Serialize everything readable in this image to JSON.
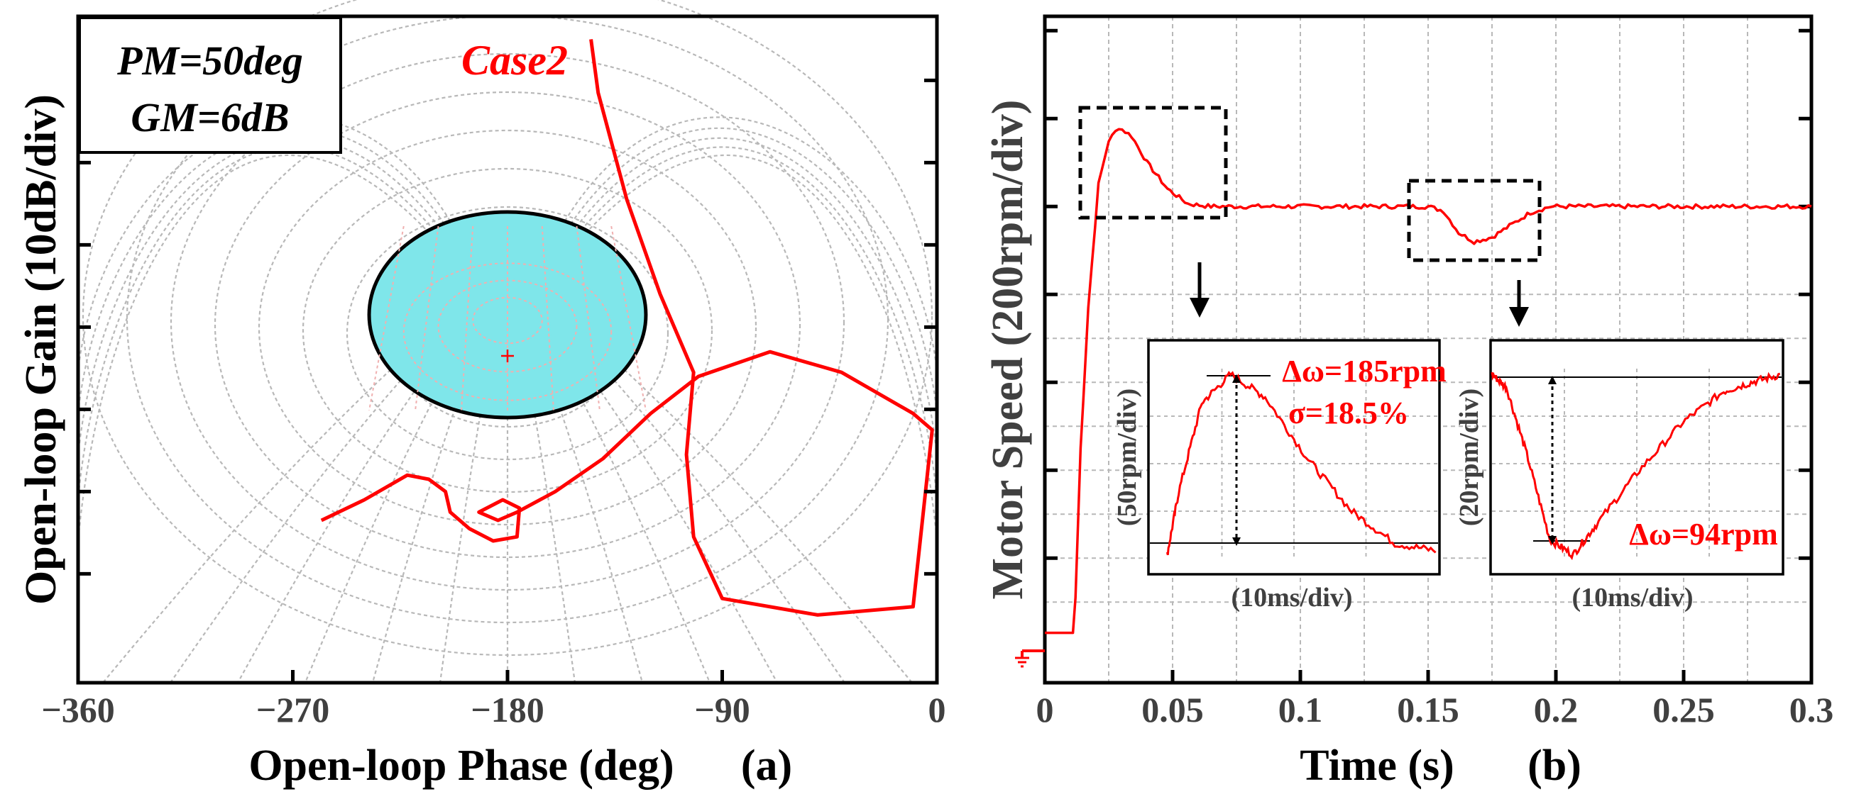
{
  "colors": {
    "trace": "#ff0000",
    "ellipse_fill": "#7fe6ea",
    "grid": "#b8b8b8",
    "ellipse_grid": "#f0b0b0",
    "axis_text": "#404040",
    "annotation": "#ff0000"
  },
  "chart_data": [
    {
      "type": "line",
      "panel_label": "(a)",
      "xlabel": "Open-loop Phase (deg)",
      "ylabel": "Open-loop Gain (10dB/div)",
      "xlim": [
        -360,
        0
      ],
      "x_ticks": [
        "−360",
        "−270",
        "−180",
        "−90",
        "0"
      ],
      "x_tick_values": [
        -360,
        -270,
        -180,
        -90,
        0
      ],
      "y_tick_count": 7,
      "annotation_box": [
        "PM=50deg",
        "GM=6dB"
      ],
      "case_label": "Case2",
      "center_mark": {
        "phase": -180,
        "gain_div": 0
      },
      "series": [
        {
          "name": "Case2 open-loop curve",
          "points_phase_gain_div": [
            [
              -258,
              -2.0
            ],
            [
              -240,
              -1.75
            ],
            [
              -222,
              -1.45
            ],
            [
              -213,
              -1.5
            ],
            [
              -206,
              -1.65
            ],
            [
              -204,
              -1.9
            ],
            [
              -196,
              -2.1
            ],
            [
              -186,
              -2.25
            ],
            [
              -176,
              -2.2
            ],
            [
              -175,
              -1.85
            ],
            [
              -182,
              -1.75
            ],
            [
              -192,
              -1.9
            ],
            [
              -184,
              -2.0
            ],
            [
              -176,
              -1.9
            ],
            [
              -160,
              -1.65
            ],
            [
              -140,
              -1.25
            ],
            [
              -120,
              -0.7
            ],
            [
              -100,
              -0.25
            ],
            [
              -70,
              0.05
            ],
            [
              -40,
              -0.2
            ],
            [
              -10,
              -0.7
            ],
            [
              -2,
              -0.9
            ],
            [
              -10,
              -3.05
            ],
            [
              -50,
              -3.15
            ],
            [
              -90,
              -2.95
            ],
            [
              -102,
              -2.2
            ],
            [
              -105,
              -1.2
            ],
            [
              -102,
              -0.2
            ],
            [
              -116,
              0.75
            ],
            [
              -130,
              1.9
            ],
            [
              -142,
              3.2
            ],
            [
              -145,
              3.85
            ]
          ]
        }
      ],
      "ellipse": {
        "center_phase": -180,
        "center_gain_div": 0.5,
        "half_width_phase": 58,
        "half_height_div": 1.25
      }
    },
    {
      "type": "line",
      "panel_label": "(b)",
      "xlabel": "Time (s)",
      "ylabel": "Motor Speed (200rpm/div)",
      "xlim": [
        0,
        0.3
      ],
      "x_ticks": [
        "0",
        "0.05",
        "0.1",
        "0.15",
        "0.2",
        "0.25",
        "0.3"
      ],
      "x_tick_values": [
        0,
        0.05,
        0.1,
        0.15,
        0.2,
        0.25,
        0.3
      ],
      "ground_marker": "1",
      "series": [
        {
          "name": "Motor speed",
          "points_time_div": [
            [
              0,
              0.1
            ],
            [
              0.011,
              0.1
            ],
            [
              0.012,
              0.5
            ],
            [
              0.014,
              2.2
            ],
            [
              0.017,
              3.8
            ],
            [
              0.021,
              5.2
            ],
            [
              0.025,
              5.7
            ],
            [
              0.029,
              5.85
            ],
            [
              0.034,
              5.75
            ],
            [
              0.04,
              5.45
            ],
            [
              0.048,
              5.15
            ],
            [
              0.056,
              4.98
            ],
            [
              0.065,
              4.95
            ],
            [
              0.08,
              4.95
            ],
            [
              0.1,
              4.95
            ],
            [
              0.15,
              4.95
            ],
            [
              0.156,
              4.9
            ],
            [
              0.162,
              4.65
            ],
            [
              0.168,
              4.55
            ],
            [
              0.175,
              4.6
            ],
            [
              0.183,
              4.75
            ],
            [
              0.19,
              4.88
            ],
            [
              0.198,
              4.95
            ],
            [
              0.25,
              4.95
            ],
            [
              0.3,
              4.95
            ]
          ]
        }
      ],
      "insets": [
        {
          "ylabel": "(50rpm/div)",
          "xlabel": "(10ms/div)",
          "annotations": [
            "Δω=185rpm",
            "σ=18.5%"
          ],
          "series_frac": [
            [
              0.06,
              0.02
            ],
            [
              0.1,
              0.35
            ],
            [
              0.18,
              0.82
            ],
            [
              0.28,
              0.97
            ],
            [
              0.4,
              0.85
            ],
            [
              0.55,
              0.52
            ],
            [
              0.7,
              0.25
            ],
            [
              0.85,
              0.08
            ],
            [
              1.0,
              0.04
            ]
          ]
        },
        {
          "ylabel": "(20rpm/div)",
          "xlabel": "(10ms/div)",
          "annotations": [
            "Δω=94rpm"
          ],
          "series_frac": [
            [
              0.0,
              0.97
            ],
            [
              0.05,
              0.9
            ],
            [
              0.12,
              0.55
            ],
            [
              0.2,
              0.1
            ],
            [
              0.28,
              0.02
            ],
            [
              0.36,
              0.18
            ],
            [
              0.5,
              0.45
            ],
            [
              0.66,
              0.72
            ],
            [
              0.8,
              0.88
            ],
            [
              0.9,
              0.93
            ],
            [
              1.0,
              0.97
            ]
          ]
        }
      ]
    }
  ]
}
